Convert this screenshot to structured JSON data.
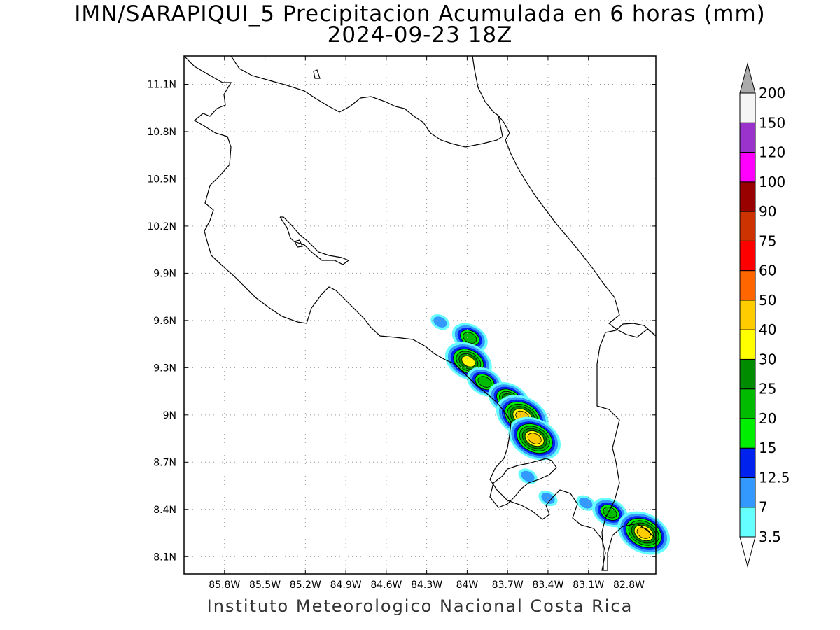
{
  "title": {
    "line1": "IMN/SARAPIQUI_5 Precipitacion Acumulada en 6 horas (mm)",
    "line2": "2024-09-23 18Z"
  },
  "credit": "Instituto Meteorologico Nacional Costa Rica",
  "map": {
    "lon_range": [
      -86.1,
      -82.6
    ],
    "lat_range": [
      7.99,
      11.28
    ],
    "grid_lines": true,
    "x_ticks": [
      "85.8W",
      "85.5W",
      "85.2W",
      "84.9W",
      "84.6W",
      "84.3W",
      "84W",
      "83.7W",
      "83.4W",
      "83.1W",
      "82.8W"
    ],
    "x_tick_values": [
      -85.8,
      -85.5,
      -85.2,
      -84.9,
      -84.6,
      -84.3,
      -84.0,
      -83.7,
      -83.4,
      -83.1,
      -82.8
    ],
    "y_ticks": [
      "11.1N",
      "10.8N",
      "10.5N",
      "10.2N",
      "9.9N",
      "9.6N",
      "9.3N",
      "9N",
      "8.7N",
      "8.4N",
      "8.1N"
    ],
    "y_tick_values": [
      11.1,
      10.8,
      10.5,
      10.2,
      9.9,
      9.6,
      9.3,
      9.0,
      8.7,
      8.4,
      8.1
    ]
  },
  "colorbar": {
    "levels": [
      "3.5",
      "7",
      "12.5",
      "15",
      "20",
      "25",
      "30",
      "40",
      "50",
      "60",
      "75",
      "90",
      "100",
      "120",
      "150",
      "200"
    ],
    "colors": [
      "#66ffff",
      "#3399ff",
      "#0022ee",
      "#00ee00",
      "#00bb00",
      "#008c00",
      "#ffff00",
      "#ffcc00",
      "#ff6600",
      "#ff0000",
      "#cc3300",
      "#990000",
      "#ff00ff",
      "#9933cc",
      "#f5f5f5"
    ],
    "under_color": "#ffffff",
    "over_color": "#aaaaaa"
  },
  "precipitation_cells": [
    {
      "lon": -83.98,
      "lat": 9.49,
      "level": 4
    },
    {
      "lon": -83.99,
      "lat": 9.34,
      "level": 6
    },
    {
      "lon": -83.87,
      "lat": 9.21,
      "level": 4
    },
    {
      "lon": -83.69,
      "lat": 9.1,
      "level": 5
    },
    {
      "lon": -83.59,
      "lat": 8.99,
      "level": 7
    },
    {
      "lon": -83.5,
      "lat": 8.85,
      "level": 7
    },
    {
      "lon": -82.94,
      "lat": 8.38,
      "level": 4
    },
    {
      "lon": -82.69,
      "lat": 8.25,
      "level": 7
    },
    {
      "lon": -84.2,
      "lat": 9.59,
      "level": 1
    },
    {
      "lon": -83.55,
      "lat": 8.61,
      "level": 1
    },
    {
      "lon": -83.4,
      "lat": 8.47,
      "level": 1
    },
    {
      "lon": -83.12,
      "lat": 8.44,
      "level": 1
    }
  ]
}
